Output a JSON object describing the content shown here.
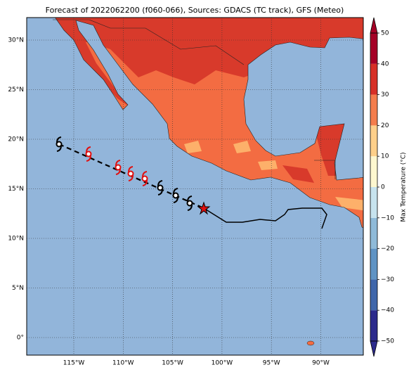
{
  "title": "Forecast of 2022062200 (f060-066), Sources: GDACS (TC track), GFS (Meteo)",
  "map": {
    "lat_labels": [
      "30°N",
      "25°N",
      "20°N",
      "15°N",
      "10°N",
      "5°N",
      "0°"
    ],
    "lon_labels": [
      "115°W",
      "110°W",
      "105°W",
      "100°W",
      "95°W",
      "90°W"
    ]
  },
  "colorbar": {
    "label": "Max Temperature (°C)",
    "lim": [
      -50,
      50
    ],
    "ticks": [
      {
        "value": -50,
        "label": "−50"
      },
      {
        "value": -40,
        "label": "−40"
      },
      {
        "value": -30,
        "label": "−30"
      },
      {
        "value": -20,
        "label": "−20"
      },
      {
        "value": -10,
        "label": "−10"
      },
      0,
      10,
      20,
      30,
      40,
      50
    ],
    "colors": [
      "#2c2a8c",
      "#3f66aa",
      "#5f93c4",
      "#8fbad8",
      "#c7e3ee",
      "#fdf7cf",
      "#fdcf8a",
      "#f47d4c",
      "#d73027",
      "#a50026"
    ]
  }
}
